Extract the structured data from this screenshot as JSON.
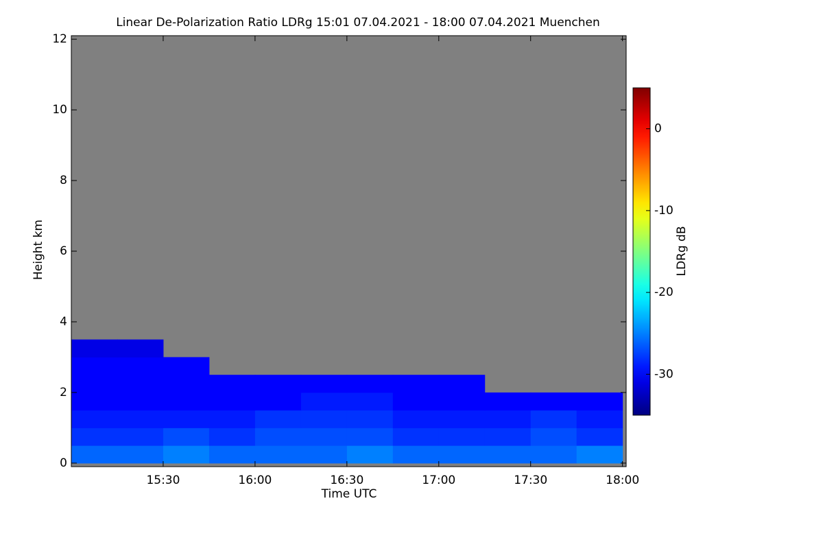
{
  "chart_data": {
    "type": "heatmap",
    "title": "Linear De-Polarization Ratio LDRg   15:01 07.04.2021 - 18:00 07.04.2021 Muenchen",
    "x_label": "Time UTC",
    "y_label": "Height km",
    "colorbar_label": "LDRg dB",
    "xlim": [
      15.0,
      18.02
    ],
    "xticks": [
      {
        "value": 15.5,
        "label": "15:30"
      },
      {
        "value": 16,
        "label": "16:00"
      },
      {
        "value": 16.5,
        "label": "16:30"
      },
      {
        "value": 17,
        "label": "17:00"
      },
      {
        "value": 17.5,
        "label": "17:30"
      },
      {
        "value": 18,
        "label": "18:00"
      }
    ],
    "ylim": [
      -0.1,
      12.1
    ],
    "yticks": [
      0,
      2,
      4,
      6,
      8,
      10,
      12
    ],
    "zlim": [
      -35,
      5
    ],
    "zticks": [
      -30,
      -20,
      -10,
      0
    ],
    "colormap": "jet",
    "background": "#808080",
    "x": [
      15.0,
      15.25,
      15.5,
      15.75,
      16.0,
      16.25,
      16.5,
      16.75,
      17.0,
      17.25,
      17.5,
      17.75,
      18.0
    ],
    "y": [
      0,
      0.5,
      1,
      1.5,
      2,
      2.5,
      3,
      3.5
    ],
    "z": [
      [
        -26,
        -26,
        -25,
        -26,
        -26,
        -26,
        -25,
        -26,
        -26,
        -26,
        -26,
        -25
      ],
      [
        -28,
        -28,
        -27,
        -28,
        -27,
        -27,
        -27,
        -28,
        -28,
        -28,
        -27,
        -28
      ],
      [
        -29,
        -29,
        -29,
        -29,
        -28,
        -28,
        -28,
        -29,
        -29,
        -29,
        -28,
        -29
      ],
      [
        -30,
        -30,
        -30,
        -30,
        -30,
        -29,
        -29,
        -30,
        -30,
        -30,
        -30,
        -30
      ],
      [
        -30,
        -30,
        -30,
        -30,
        -30,
        -30,
        -30,
        -30,
        -30,
        null,
        null,
        null
      ],
      [
        -30,
        -30,
        -30,
        null,
        null,
        null,
        null,
        null,
        null,
        null,
        null,
        null
      ],
      [
        -31,
        -31,
        null,
        null,
        null,
        null,
        null,
        null,
        null,
        null,
        null,
        null
      ]
    ]
  }
}
